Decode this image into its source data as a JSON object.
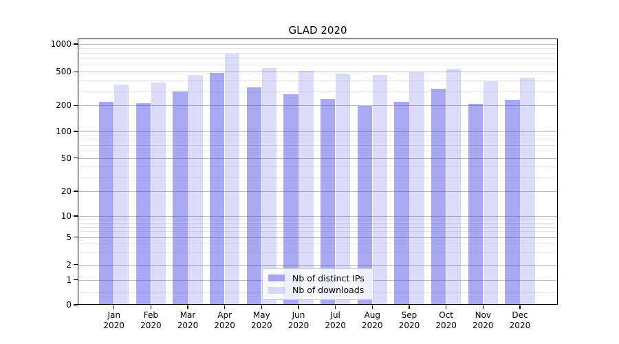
{
  "title": "GLAD 2020",
  "chart_data": {
    "type": "bar",
    "title": "GLAD 2020",
    "yscale": "symlog",
    "ylim": [
      0,
      1000
    ],
    "grid": "both",
    "legend_position": "lower center",
    "yticks": [
      0,
      1,
      2,
      5,
      10,
      20,
      50,
      100,
      200,
      500,
      1000
    ],
    "categories": [
      "Jan",
      "Feb",
      "Mar",
      "Apr",
      "May",
      "Jun",
      "Jul",
      "Aug",
      "Sep",
      "Oct",
      "Nov",
      "Dec"
    ],
    "category_year": "2020",
    "series": [
      {
        "name": "Nb of distinct IPs",
        "color": "rgba(70,70,230,0.47)",
        "values": [
          222,
          214,
          292,
          481,
          325,
          272,
          238,
          196,
          222,
          313,
          210,
          233
        ]
      },
      {
        "name": "Nb of downloads",
        "color": "rgba(70,70,230,0.19)",
        "values": [
          350,
          372,
          456,
          790,
          546,
          508,
          472,
          458,
          493,
          540,
          385,
          427
        ]
      }
    ]
  }
}
